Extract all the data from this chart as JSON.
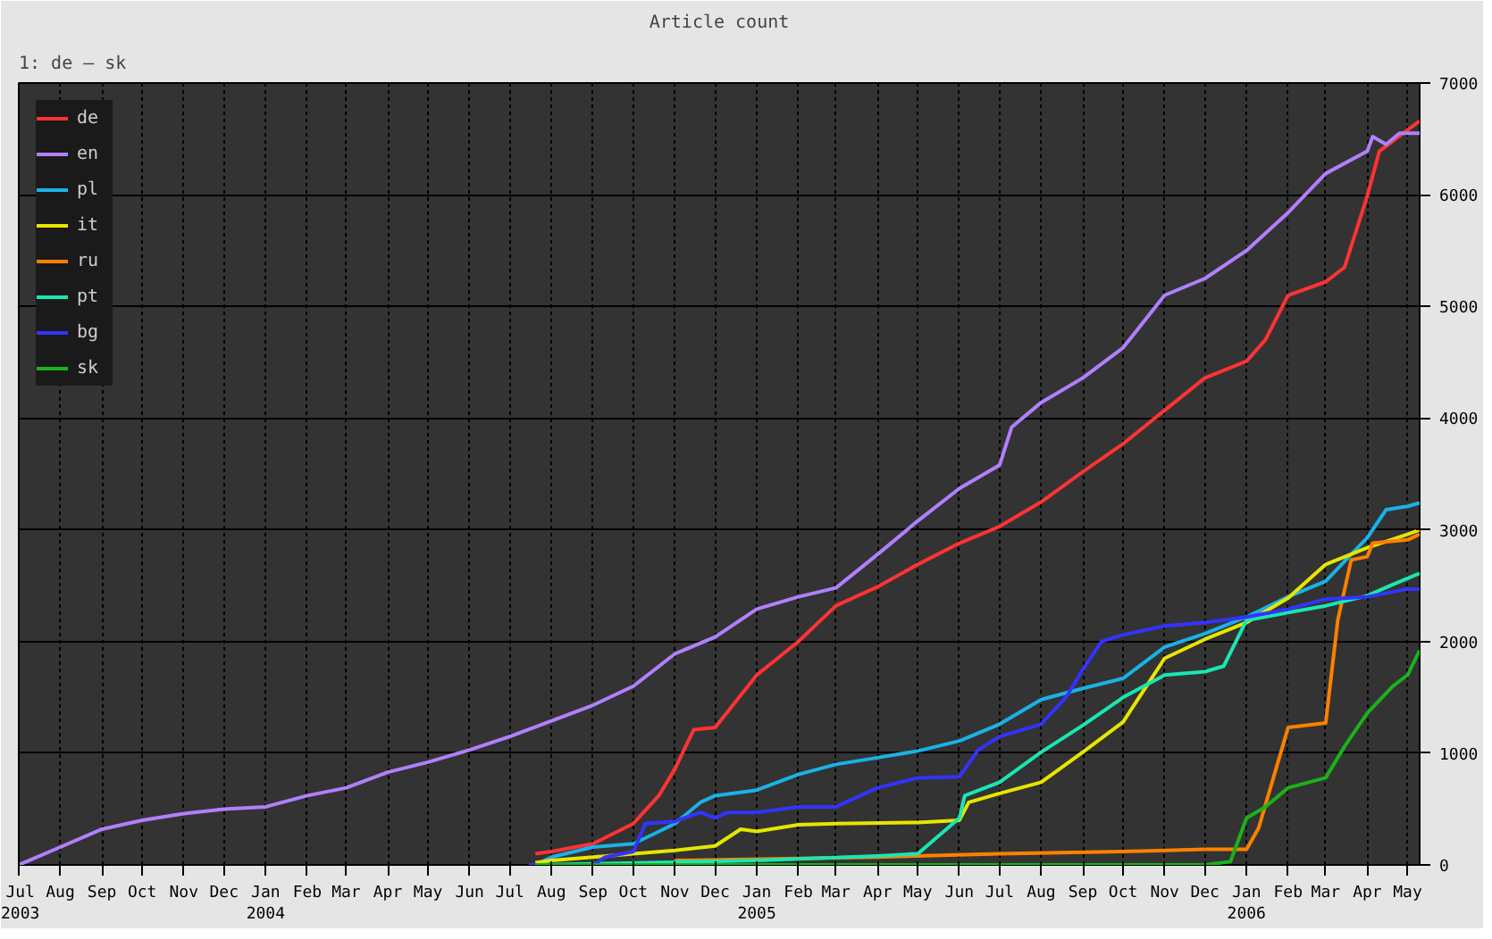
{
  "chart_data": {
    "type": "line",
    "title": "Article count",
    "annotations": [
      "1: de – sk"
    ],
    "xlim": [
      "2003-07-01",
      "2006-05-10"
    ],
    "ylim": [
      0,
      7000
    ],
    "yticks": [
      0,
      1000,
      2000,
      3000,
      4000,
      5000,
      6000,
      7000
    ],
    "xticks": [
      {
        "value": "2003-07-01",
        "label": "Jul\n2003"
      },
      {
        "value": "2003-08-01",
        "label": "Aug"
      },
      {
        "value": "2003-09-01",
        "label": "Sep"
      },
      {
        "value": "2003-10-01",
        "label": "Oct"
      },
      {
        "value": "2003-11-01",
        "label": "Nov"
      },
      {
        "value": "2003-12-01",
        "label": "Dec"
      },
      {
        "value": "2004-01-01",
        "label": "Jan\n2004"
      },
      {
        "value": "2004-02-01",
        "label": "Feb"
      },
      {
        "value": "2004-03-01",
        "label": "Mar"
      },
      {
        "value": "2004-04-01",
        "label": "Apr"
      },
      {
        "value": "2004-05-01",
        "label": "May"
      },
      {
        "value": "2004-06-01",
        "label": "Jun"
      },
      {
        "value": "2004-07-01",
        "label": "Jul"
      },
      {
        "value": "2004-08-01",
        "label": "Aug"
      },
      {
        "value": "2004-09-01",
        "label": "Sep"
      },
      {
        "value": "2004-10-01",
        "label": "Oct"
      },
      {
        "value": "2004-11-01",
        "label": "Nov"
      },
      {
        "value": "2004-12-01",
        "label": "Dec"
      },
      {
        "value": "2005-01-01",
        "label": "Jan\n2005"
      },
      {
        "value": "2005-02-01",
        "label": "Feb"
      },
      {
        "value": "2005-03-01",
        "label": "Mar"
      },
      {
        "value": "2005-04-01",
        "label": "Apr"
      },
      {
        "value": "2005-05-01",
        "label": "May"
      },
      {
        "value": "2005-06-01",
        "label": "Jun"
      },
      {
        "value": "2005-07-01",
        "label": "Jul"
      },
      {
        "value": "2005-08-01",
        "label": "Aug"
      },
      {
        "value": "2005-09-01",
        "label": "Sep"
      },
      {
        "value": "2005-10-01",
        "label": "Oct"
      },
      {
        "value": "2005-11-01",
        "label": "Nov"
      },
      {
        "value": "2005-12-01",
        "label": "Dec"
      },
      {
        "value": "2006-01-01",
        "label": "Jan\n2006"
      },
      {
        "value": "2006-02-01",
        "label": "Feb"
      },
      {
        "value": "2006-03-01",
        "label": "Mar"
      },
      {
        "value": "2006-04-01",
        "label": "Apr"
      },
      {
        "value": "2006-05-01",
        "label": "May"
      }
    ],
    "grid": true,
    "legend": "top left",
    "line_style": "solid",
    "series": [
      {
        "name": "de",
        "color": "#ff3333",
        "x": [
          "2004-07-20",
          "2004-08-01",
          "2004-09-01",
          "2004-10-01",
          "2004-10-20",
          "2004-11-01",
          "2004-11-15",
          "2004-12-01",
          "2005-01-01",
          "2005-02-01",
          "2005-03-01",
          "2005-04-01",
          "2005-05-01",
          "2005-06-01",
          "2005-07-01",
          "2005-08-01",
          "2005-09-01",
          "2005-10-01",
          "2005-11-01",
          "2005-12-01",
          "2006-01-01",
          "2006-01-15",
          "2006-02-01",
          "2006-03-01",
          "2006-03-15",
          "2006-04-01",
          "2006-04-10",
          "2006-05-01",
          "2006-05-10"
        ],
        "values": [
          100,
          120,
          190,
          370,
          620,
          860,
          1210,
          1230,
          1700,
          2000,
          2320,
          2490,
          2690,
          2880,
          3030,
          3250,
          3520,
          3770,
          4070,
          4360,
          4510,
          4700,
          5100,
          5220,
          5350,
          5990,
          6390,
          6580,
          6660
        ]
      },
      {
        "name": "en",
        "color": "#b080ff",
        "x": [
          "2003-07-01",
          "2003-08-01",
          "2003-09-01",
          "2003-10-01",
          "2003-11-01",
          "2003-12-01",
          "2004-01-01",
          "2004-02-01",
          "2004-03-01",
          "2004-04-01",
          "2004-05-01",
          "2004-06-01",
          "2004-07-01",
          "2004-08-01",
          "2004-09-01",
          "2004-10-01",
          "2004-11-01",
          "2004-12-01",
          "2005-01-01",
          "2005-02-01",
          "2005-03-01",
          "2005-04-01",
          "2005-05-01",
          "2005-06-01",
          "2005-07-01",
          "2005-07-10",
          "2005-08-01",
          "2005-09-01",
          "2005-10-01",
          "2005-11-01",
          "2005-12-01",
          "2006-01-01",
          "2006-02-01",
          "2006-03-01",
          "2006-04-01",
          "2006-04-05",
          "2006-04-15",
          "2006-04-25",
          "2006-05-10"
        ],
        "values": [
          0,
          160,
          320,
          400,
          460,
          500,
          520,
          620,
          690,
          830,
          920,
          1030,
          1150,
          1290,
          1430,
          1600,
          1890,
          2040,
          2290,
          2400,
          2480,
          2780,
          3080,
          3370,
          3580,
          3920,
          4140,
          4360,
          4630,
          5100,
          5250,
          5500,
          5840,
          6190,
          6390,
          6520,
          6450,
          6550,
          6550
        ]
      },
      {
        "name": "pl",
        "color": "#1ab2e6",
        "x": [
          "2004-07-20",
          "2004-08-01",
          "2004-09-01",
          "2004-10-01",
          "2004-10-15",
          "2004-11-01",
          "2004-11-20",
          "2004-12-01",
          "2005-01-01",
          "2005-02-01",
          "2005-03-01",
          "2005-04-01",
          "2005-05-01",
          "2005-06-01",
          "2005-07-01",
          "2005-08-01",
          "2005-09-01",
          "2005-10-01",
          "2005-11-01",
          "2005-12-01",
          "2006-01-01",
          "2006-02-01",
          "2006-03-01",
          "2006-04-01",
          "2006-04-15",
          "2006-05-01",
          "2006-05-10"
        ],
        "values": [
          0,
          70,
          160,
          190,
          270,
          370,
          560,
          620,
          670,
          810,
          900,
          960,
          1020,
          1110,
          1260,
          1480,
          1580,
          1670,
          1950,
          2070,
          2220,
          2400,
          2540,
          2930,
          3180,
          3210,
          3240
        ]
      },
      {
        "name": "it",
        "color": "#e6e600",
        "x": [
          "2004-07-20",
          "2004-08-01",
          "2004-09-01",
          "2004-10-01",
          "2004-11-01",
          "2004-12-01",
          "2004-12-20",
          "2005-01-01",
          "2005-02-01",
          "2005-03-01",
          "2005-05-01",
          "2005-06-01",
          "2005-06-08",
          "2005-07-01",
          "2005-08-01",
          "2005-09-01",
          "2005-10-01",
          "2005-11-01",
          "2005-12-01",
          "2006-01-01",
          "2006-02-01",
          "2006-03-01",
          "2006-04-01",
          "2006-05-01",
          "2006-05-10"
        ],
        "values": [
          20,
          40,
          70,
          100,
          130,
          170,
          320,
          300,
          360,
          370,
          380,
          400,
          560,
          640,
          740,
          1010,
          1280,
          1850,
          2020,
          2170,
          2390,
          2690,
          2840,
          2960,
          3000
        ]
      },
      {
        "name": "ru",
        "color": "#ff8000",
        "x": [
          "2004-11-01",
          "2005-04-01",
          "2005-07-01",
          "2005-10-01",
          "2005-12-01",
          "2006-01-01",
          "2006-01-10",
          "2006-02-01",
          "2006-03-01",
          "2006-03-10",
          "2006-03-20",
          "2006-04-01",
          "2006-04-05",
          "2006-05-01",
          "2006-05-10"
        ],
        "values": [
          40,
          70,
          100,
          120,
          140,
          140,
          330,
          1230,
          1270,
          2190,
          2730,
          2760,
          2880,
          2910,
          2960
        ]
      },
      {
        "name": "pt",
        "color": "#1ae6b2",
        "x": [
          "2004-07-20",
          "2005-01-01",
          "2005-04-01",
          "2005-05-01",
          "2005-06-01",
          "2005-06-05",
          "2005-07-01",
          "2005-08-01",
          "2005-09-01",
          "2005-10-01",
          "2005-11-01",
          "2005-12-01",
          "2005-12-15",
          "2006-01-01",
          "2006-02-01",
          "2006-03-01",
          "2006-04-01",
          "2006-04-20",
          "2006-05-10"
        ],
        "values": [
          0,
          40,
          80,
          100,
          420,
          620,
          740,
          1010,
          1250,
          1500,
          1700,
          1730,
          1780,
          2190,
          2260,
          2320,
          2410,
          2510,
          2610
        ]
      },
      {
        "name": "bg",
        "color": "#3333ff",
        "x": [
          "2004-07-15",
          "2004-09-01",
          "2004-09-10",
          "2004-10-01",
          "2004-10-10",
          "2004-11-01",
          "2004-11-20",
          "2004-12-01",
          "2004-12-10",
          "2005-01-01",
          "2005-02-01",
          "2005-03-01",
          "2005-04-01",
          "2005-05-01",
          "2005-06-01",
          "2005-06-15",
          "2005-07-01",
          "2005-08-01",
          "2005-08-20",
          "2005-09-01",
          "2005-09-15",
          "2005-10-01",
          "2005-11-01",
          "2005-12-01",
          "2006-01-01",
          "2006-02-01",
          "2006-03-01",
          "2006-04-01",
          "2006-05-01",
          "2006-05-10"
        ],
        "values": [
          0,
          0,
          70,
          120,
          370,
          390,
          470,
          420,
          470,
          470,
          520,
          520,
          690,
          780,
          790,
          1030,
          1150,
          1260,
          1510,
          1750,
          2000,
          2060,
          2140,
          2170,
          2220,
          2290,
          2380,
          2400,
          2470,
          2470
        ]
      },
      {
        "name": "sk",
        "color": "#1ab21a",
        "x": [
          "2004-07-20",
          "2005-12-01",
          "2005-12-20",
          "2006-01-01",
          "2006-01-15",
          "2006-02-01",
          "2006-03-01",
          "2006-03-15",
          "2006-04-01",
          "2006-04-20",
          "2006-05-01",
          "2006-05-10"
        ],
        "values": [
          0,
          0,
          30,
          420,
          520,
          690,
          780,
          1060,
          1360,
          1600,
          1700,
          1920
        ]
      }
    ]
  }
}
